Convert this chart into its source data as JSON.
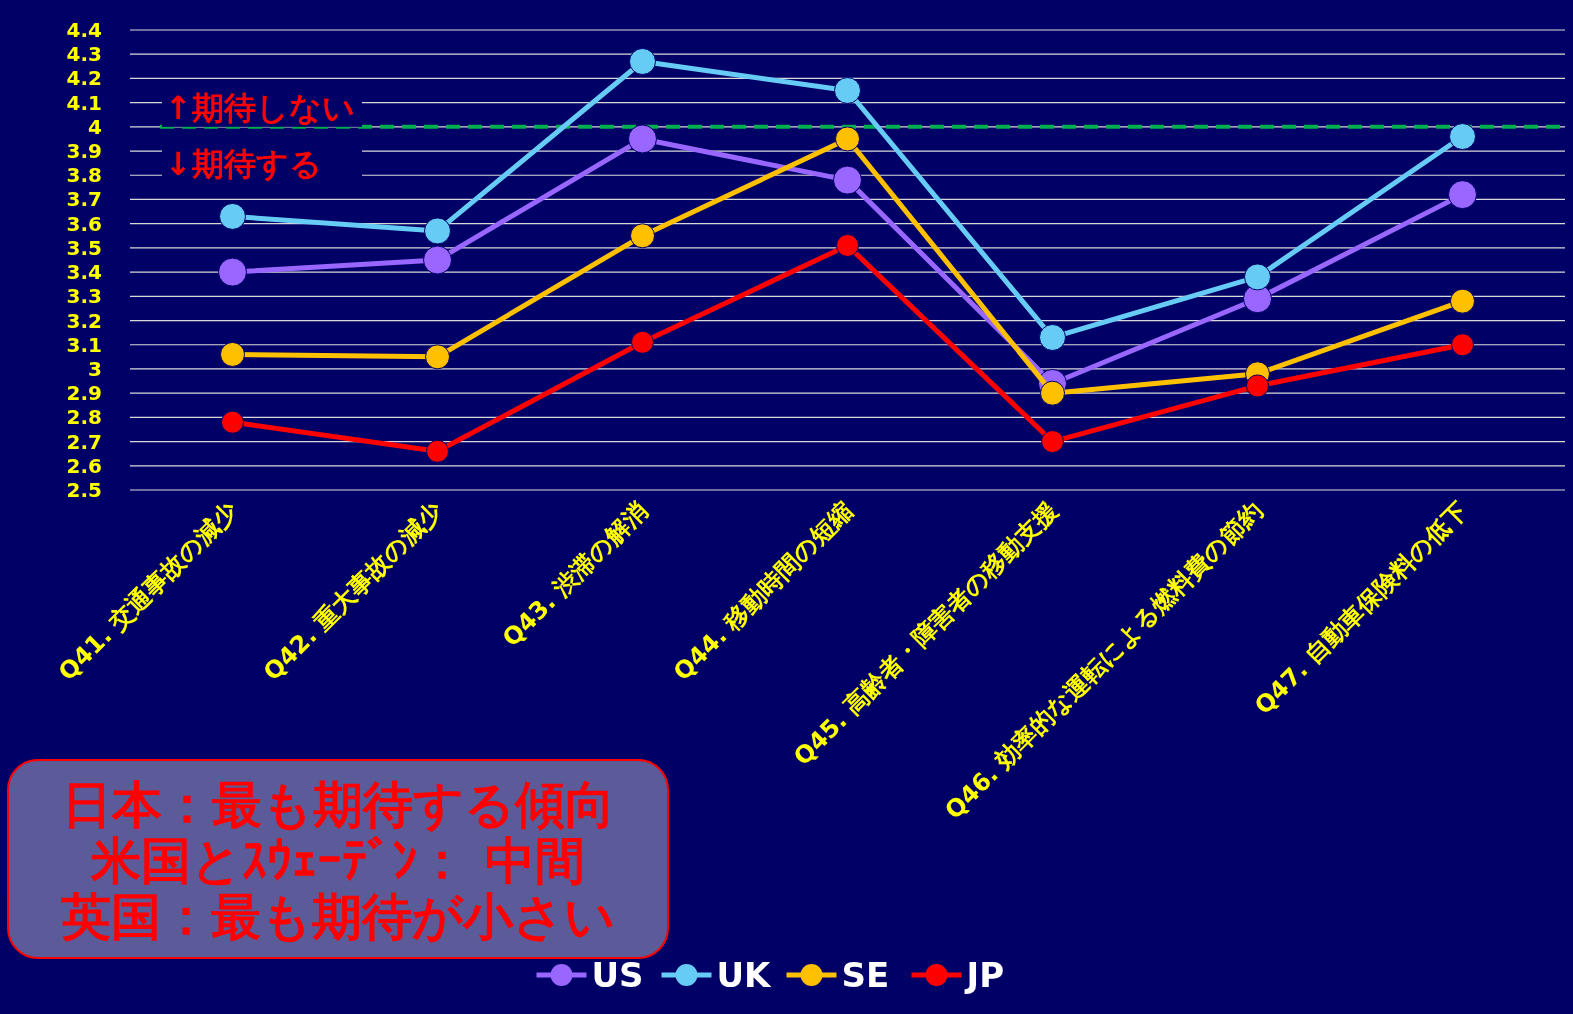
{
  "chart_data": {
    "type": "line",
    "categories": [
      "Q41. 交通事故の減少",
      "Q42. 重大事故の減少",
      "Q43. 渋滞の解消",
      "Q44. 移動時間の短縮",
      "Q45. 高齢者・障害者の移動支援",
      "Q46. 効率的な運転による燃料費の節約",
      "Q47. 自動車保険料の低下"
    ],
    "series": [
      {
        "name": "US",
        "color": "#9966ff",
        "values": [
          3.4,
          3.45,
          3.95,
          3.78,
          2.94,
          3.29,
          3.72
        ]
      },
      {
        "name": "UK",
        "color": "#66ccf5",
        "values": [
          3.63,
          3.57,
          4.27,
          4.15,
          3.13,
          3.38,
          3.96
        ]
      },
      {
        "name": "SE",
        "color": "#ffc000",
        "values": [
          3.06,
          3.05,
          3.55,
          3.95,
          2.9,
          2.98,
          3.28
        ]
      },
      {
        "name": "JP",
        "color": "#ff0000",
        "values": [
          2.78,
          2.66,
          3.11,
          3.51,
          2.7,
          2.93,
          3.1
        ]
      }
    ],
    "ylim": [
      2.5,
      4.4
    ],
    "yticks": [
      2.5,
      2.6,
      2.7,
      2.8,
      2.9,
      3,
      3.1,
      3.2,
      3.3,
      3.4,
      3.5,
      3.6,
      3.7,
      3.8,
      3.9,
      4,
      4.1,
      4.2,
      4.3,
      4.4
    ],
    "grid": "y",
    "legend": "bottom",
    "marker": "circle",
    "line_style": "solid",
    "ref_lines": [
      {
        "axis": "y",
        "value": 4,
        "color": "#00b050",
        "line_style": "dashed"
      }
    ],
    "annotations": [
      "↑期待しない",
      "↓期待する",
      "日本：最も期待する傾向",
      "米国とｽｳｪｰﾃﾞﾝ： 中間",
      "英国：最も期待が小さい"
    ]
  }
}
